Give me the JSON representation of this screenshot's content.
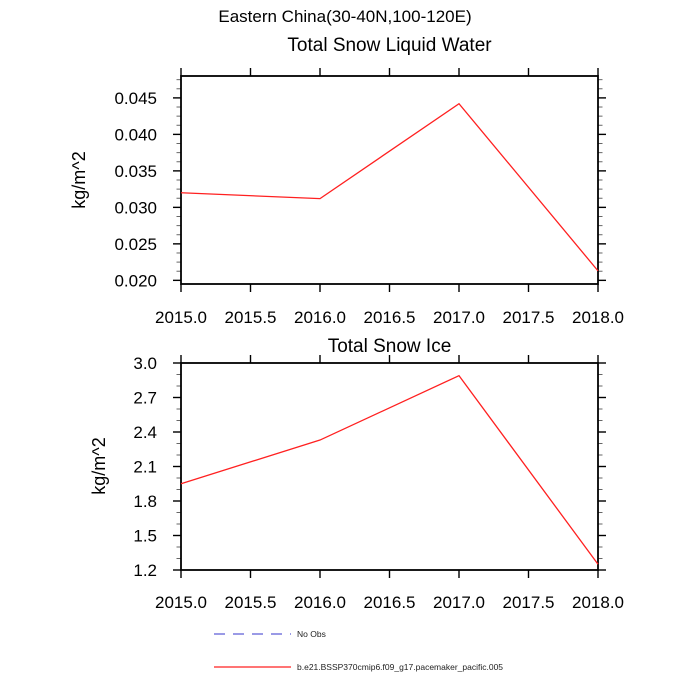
{
  "header": {
    "main_title": "Eastern China(30-40N,100-120E)"
  },
  "chart_data": [
    {
      "type": "line",
      "title": "Total Snow Liquid Water",
      "ylabel": "kg/m^2",
      "xlabel": "",
      "x": [
        2015.0,
        2016.0,
        2017.0,
        2018.0
      ],
      "series": [
        {
          "name": "b.e21.BSSP370cmip6.f09_g17.pacemaker_pacific.005",
          "color": "#ff2020",
          "values": [
            0.032,
            0.0312,
            0.0442,
            0.0213
          ]
        }
      ],
      "xlim": [
        2015.0,
        2018.0
      ],
      "ylim": [
        0.0195,
        0.048
      ],
      "xticks": [
        2015.0,
        2015.5,
        2016.0,
        2016.5,
        2017.0,
        2017.5,
        2018.0
      ],
      "xtick_labels": [
        "2015.0",
        "2015.5",
        "2016.0",
        "2016.5",
        "2017.0",
        "2017.5",
        "2018.0"
      ],
      "yticks": [
        0.02,
        0.025,
        0.03,
        0.035,
        0.04,
        0.045
      ],
      "ytick_labels": [
        "0.020",
        "0.025",
        "0.030",
        "0.035",
        "0.040",
        "0.045"
      ],
      "yminor_step": 0.00125,
      "grid": false,
      "legend_position": "below-figure"
    },
    {
      "type": "line",
      "title": "Total Snow Ice",
      "ylabel": "kg/m^2",
      "xlabel": "",
      "x": [
        2015.0,
        2016.0,
        2017.0,
        2018.0
      ],
      "series": [
        {
          "name": "b.e21.BSSP370cmip6.f09_g17.pacemaker_pacific.005",
          "color": "#ff2020",
          "values": [
            1.95,
            2.33,
            2.89,
            1.25
          ]
        }
      ],
      "xlim": [
        2015.0,
        2018.0
      ],
      "ylim": [
        1.2,
        3.0
      ],
      "xticks": [
        2015.0,
        2015.5,
        2016.0,
        2016.5,
        2017.0,
        2017.5,
        2018.0
      ],
      "xtick_labels": [
        "2015.0",
        "2015.5",
        "2016.0",
        "2016.5",
        "2017.0",
        "2017.5",
        "2018.0"
      ],
      "yticks": [
        1.2,
        1.5,
        1.8,
        2.1,
        2.4,
        2.7,
        3.0
      ],
      "ytick_labels": [
        "1.2",
        "1.5",
        "1.8",
        "2.1",
        "2.4",
        "2.7",
        "3.0"
      ],
      "yminor_step": 0.1,
      "grid": false,
      "legend_position": "below-figure"
    }
  ],
  "legend": {
    "entries": [
      {
        "label": "No Obs",
        "color": "#5e5ed6",
        "style": "dashed"
      },
      {
        "label": "b.e21.BSSP370cmip6.f09_g17.pacemaker_pacific.005",
        "color": "#ff2020",
        "style": "solid"
      }
    ]
  }
}
